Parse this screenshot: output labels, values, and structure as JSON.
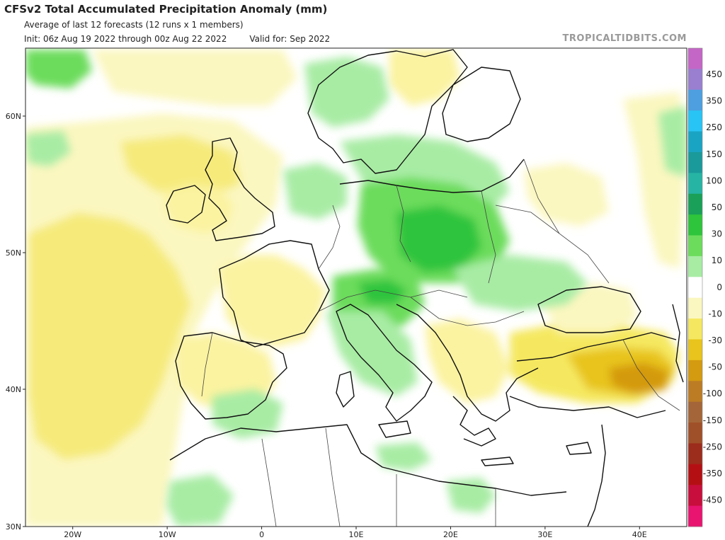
{
  "header": {
    "title": "CFSv2 Total Accumulated Precipitation Anomaly (mm)",
    "subtitle": "Average of last 12 forecasts (12 runs x 1 members)",
    "init": "Init: 06z Aug 19 2022 through 00z Aug 22 2022",
    "valid": "Valid for: Sep 2022",
    "credit": "TROPICALTIDBITS.COM"
  },
  "axes": {
    "lat_labels": [
      "60N",
      "50N",
      "40N",
      "30N"
    ],
    "lat_values": [
      60,
      50,
      40,
      30
    ],
    "lon_labels": [
      "20W",
      "10W",
      "0",
      "10E",
      "20E",
      "30E",
      "40E"
    ],
    "lon_values": [
      -20,
      -10,
      0,
      10,
      20,
      30,
      40
    ],
    "lon_range": [
      -25,
      45
    ],
    "lat_range": [
      30,
      65
    ]
  },
  "colorbar": {
    "labels": [
      "450",
      "350",
      "250",
      "150",
      "100",
      "50",
      "30",
      "10",
      "0",
      "-10",
      "-30",
      "-50",
      "-100",
      "-150",
      "-250",
      "-350",
      "-450"
    ],
    "colors": [
      "#c466c6",
      "#9a7fd0",
      "#4d9fe0",
      "#28c4f5",
      "#1aa4c4",
      "#1a9a9a",
      "#26b4a4",
      "#1aa058",
      "#2ec43c",
      "#6cdc5c",
      "#a8eca4",
      "#ffffff",
      "#fbf7c0",
      "#f5e860",
      "#e8c41c",
      "#d49a10",
      "#bc7c24",
      "#a46638",
      "#a05028",
      "#9c2c1c",
      "#b41014",
      "#c80e3c",
      "#e81470"
    ]
  },
  "anomaly_regions": [
    {
      "name": "scandinavia-north-wet",
      "level": "10"
    },
    {
      "name": "central-europe-wet",
      "level": "50"
    },
    {
      "name": "alps-wet",
      "level": "50"
    },
    {
      "name": "iberia-dry",
      "level": "-10"
    },
    {
      "name": "atlantic-dry",
      "level": "-30"
    },
    {
      "name": "turkey-dry",
      "level": "-50"
    },
    {
      "name": "caucasus-dry",
      "level": "-100"
    }
  ]
}
